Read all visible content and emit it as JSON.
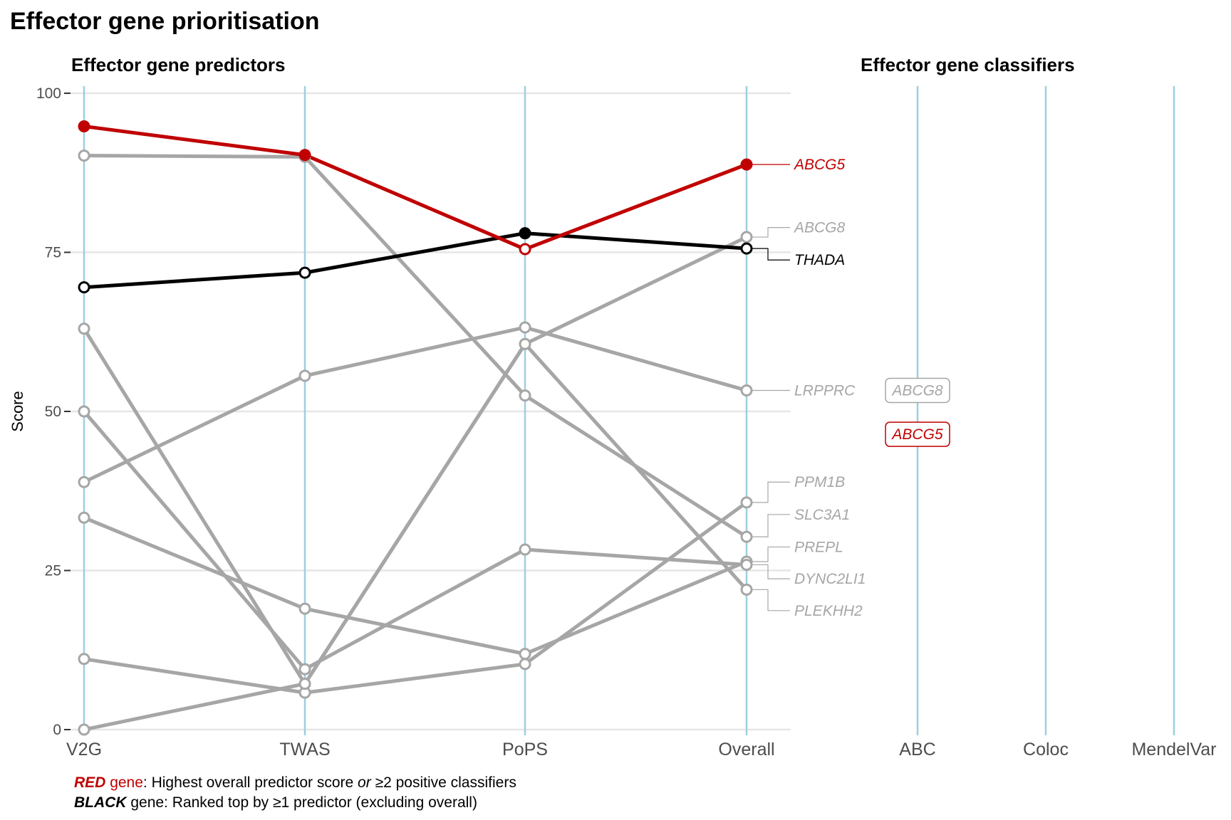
{
  "figure": {
    "title": "Effector gene prioritisation",
    "left_panel_title": "Effector gene predictors",
    "right_panel_title": "Effector gene classifiers",
    "caption_red_word": "RED",
    "caption_red_gene_word": "gene",
    "caption_red_text_a": ": Highest overall predictor score ",
    "caption_red_text_or": "or",
    "caption_red_text_b": " ≥2 positive classifiers",
    "caption_black_word": "BLACK",
    "caption_black_text": " gene: Ranked top by ≥1 predictor (excluding overall)"
  },
  "colors": {
    "red": "#c00000",
    "black": "#000000",
    "gray": "#a6a6a6",
    "vline": "#9ecfde",
    "grid": "#e6e6e6",
    "axis_text": "#4d4d4d"
  },
  "chart_data": {
    "type": "line",
    "ylabel": "Score",
    "ylim": [
      0,
      100
    ],
    "yticks": [
      0,
      25,
      50,
      75,
      100
    ],
    "categories": [
      "V2G",
      "TWAS",
      "PoPS",
      "Overall"
    ],
    "classifier_categories": [
      "ABC",
      "Coloc",
      "MendelVar"
    ],
    "series": [
      {
        "name": "ABCG5",
        "highlight": "red",
        "values": [
          94.8,
          90.3,
          75.5,
          88.8
        ],
        "filled": [
          true,
          true,
          false,
          true
        ]
      },
      {
        "name": "THADA",
        "highlight": "black",
        "values": [
          69.5,
          71.8,
          78.0,
          75.6
        ],
        "filled": [
          false,
          false,
          true,
          false
        ]
      },
      {
        "name": "ABCG8",
        "highlight": "gray",
        "values": [
          0,
          7.2,
          60.6,
          77.4
        ]
      },
      {
        "name": "LRPPRC",
        "highlight": "gray",
        "values": [
          38.9,
          55.6,
          63.2,
          53.3
        ]
      },
      {
        "name": "PPM1B",
        "highlight": "gray",
        "values": [
          11.1,
          5.8,
          10.3,
          35.7
        ]
      },
      {
        "name": "SLC3A1",
        "highlight": "gray",
        "values": [
          90.2,
          90.0,
          52.5,
          30.3
        ]
      },
      {
        "name": "PREPL",
        "highlight": "gray",
        "values": [
          33.3,
          19.0,
          11.9,
          26.4
        ]
      },
      {
        "name": "DYNC2LI1",
        "highlight": "gray",
        "values": [
          50.0,
          9.5,
          28.3,
          25.9
        ]
      },
      {
        "name": "PLEKHH2",
        "highlight": "gray",
        "values": [
          63.0,
          7.2,
          60.6,
          22.0
        ]
      }
    ],
    "gene_labels": [
      {
        "text": "ABCG5",
        "highlight": "red",
        "label_y": 88.8
      },
      {
        "text": "ABCG8",
        "highlight": "gray",
        "label_y": 78.9
      },
      {
        "text": "THADA",
        "highlight": "black",
        "label_y": 73.8
      },
      {
        "text": "LRPPRC",
        "highlight": "gray",
        "label_y": 53.3
      },
      {
        "text": "PPM1B",
        "highlight": "gray",
        "label_y": 38.9
      },
      {
        "text": "SLC3A1",
        "highlight": "gray",
        "label_y": 33.8
      },
      {
        "text": "PREPL",
        "highlight": "gray",
        "label_y": 28.7
      },
      {
        "text": "DYNC2LI1",
        "highlight": "gray",
        "label_y": 23.7
      },
      {
        "text": "PLEKHH2",
        "highlight": "gray",
        "label_y": 18.7
      }
    ],
    "classifier_hits": [
      {
        "classifier": "ABC",
        "gene": "ABCG8",
        "highlight": "gray",
        "y": 53.3
      },
      {
        "classifier": "ABC",
        "gene": "ABCG5",
        "highlight": "red",
        "y": 46.4
      }
    ]
  }
}
